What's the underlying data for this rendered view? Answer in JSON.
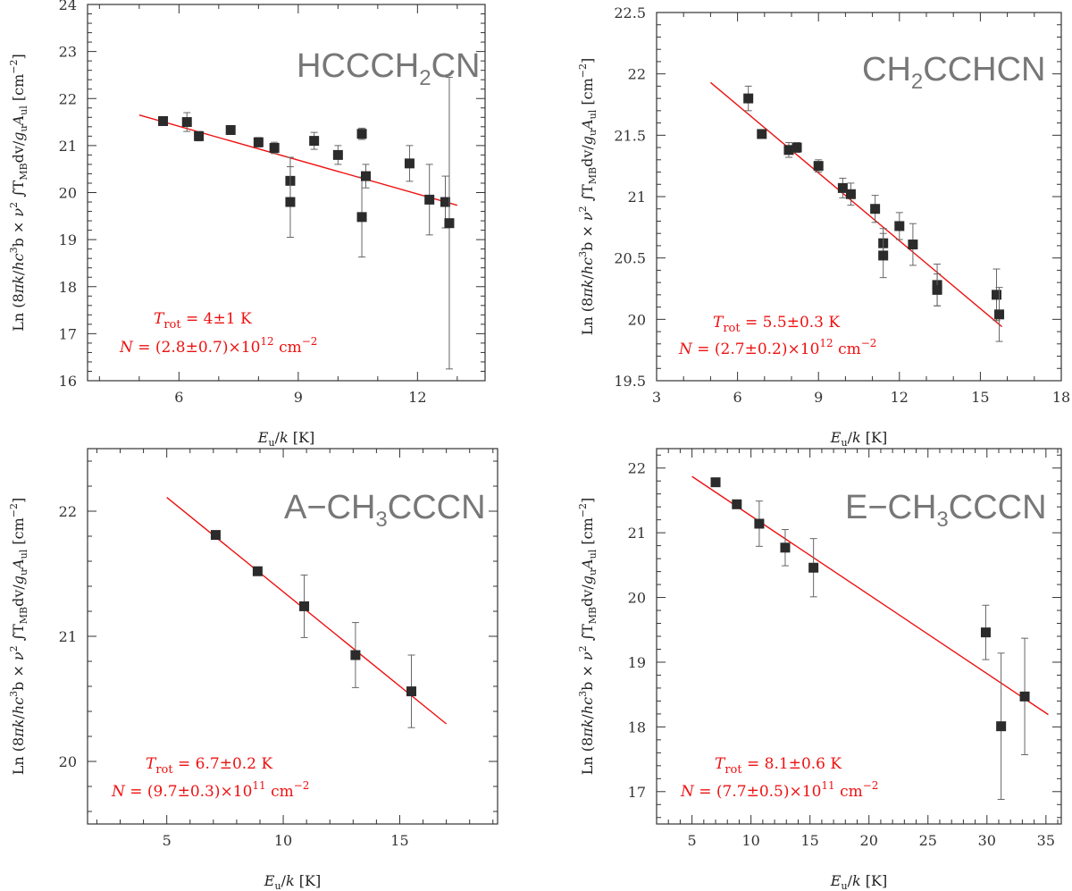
{
  "chart_data": [
    {
      "type": "scatter",
      "molecule": "HCCCH2CN",
      "xlabel": "Eu/k [K]",
      "ylabel": "Ln (8πk/hc³b × ν² ∫TMBdv/guAul [cm⁻²]",
      "xlim": [
        3.7,
        13.7
      ],
      "ylim": [
        16,
        24
      ],
      "xticks": [
        6,
        9,
        12
      ],
      "yticks": [
        16,
        17,
        18,
        19,
        20,
        21,
        22,
        23,
        24
      ],
      "points": [
        {
          "x": 5.6,
          "y": 21.52,
          "err": 0.08
        },
        {
          "x": 6.2,
          "y": 21.5,
          "err": 0.2
        },
        {
          "x": 6.5,
          "y": 21.2,
          "err": 0.1
        },
        {
          "x": 7.3,
          "y": 21.33,
          "err": 0.07
        },
        {
          "x": 8.0,
          "y": 21.07,
          "err": 0.1
        },
        {
          "x": 8.4,
          "y": 20.95,
          "err": 0.12
        },
        {
          "x": 8.8,
          "y": 20.25,
          "err": 0.5
        },
        {
          "x": 8.8,
          "y": 19.8,
          "err": 0.75
        },
        {
          "x": 9.4,
          "y": 21.1,
          "err": 0.18
        },
        {
          "x": 10.0,
          "y": 20.8,
          "err": 0.2
        },
        {
          "x": 10.6,
          "y": 21.25,
          "err": 0.12
        },
        {
          "x": 10.6,
          "y": 19.48,
          "err": 0.85
        },
        {
          "x": 10.7,
          "y": 20.35,
          "err": 0.25
        },
        {
          "x": 11.8,
          "y": 20.62,
          "err": 0.38
        },
        {
          "x": 12.3,
          "y": 19.85,
          "err": 0.75
        },
        {
          "x": 12.7,
          "y": 19.8,
          "err": 0.55
        },
        {
          "x": 12.8,
          "y": 19.35,
          "err": 3.1
        }
      ],
      "fit": {
        "x": [
          5.0,
          13.0
        ],
        "y": [
          21.65,
          19.73
        ]
      },
      "annotation": {
        "trot_symbol": "T",
        "trot_sub": "rot",
        "trot_value": " = 4±1 K",
        "n_symbol": "N",
        "n_value": " = (2.8±0.7)×10",
        "n_exp": "12",
        "n_unit": " cm",
        "n_unit_exp": "−2"
      }
    },
    {
      "type": "scatter",
      "molecule": "CH2CCHCN",
      "xlabel": "Eu/k [K]",
      "ylabel": "Ln (8πk/hc³b × ν² ∫TMBdv/guAul [cm⁻²]",
      "xlim": [
        3,
        18
      ],
      "ylim": [
        19.5,
        22.5
      ],
      "xticks": [
        3,
        6,
        9,
        12,
        15,
        18
      ],
      "yticks": [
        19.5,
        20,
        20.5,
        21,
        21.5,
        22,
        22.5
      ],
      "points": [
        {
          "x": 6.4,
          "y": 21.8,
          "err": 0.1
        },
        {
          "x": 6.9,
          "y": 21.51,
          "err": 0.03
        },
        {
          "x": 7.9,
          "y": 21.38,
          "err": 0.06
        },
        {
          "x": 8.2,
          "y": 21.4,
          "err": 0.04
        },
        {
          "x": 9.0,
          "y": 21.25,
          "err": 0.05
        },
        {
          "x": 9.9,
          "y": 21.07,
          "err": 0.08
        },
        {
          "x": 10.2,
          "y": 21.02,
          "err": 0.09
        },
        {
          "x": 11.1,
          "y": 20.9,
          "err": 0.11
        },
        {
          "x": 11.4,
          "y": 20.62,
          "err": 0.12
        },
        {
          "x": 11.4,
          "y": 20.52,
          "err": 0.18
        },
        {
          "x": 12.0,
          "y": 20.76,
          "err": 0.11
        },
        {
          "x": 12.5,
          "y": 20.61,
          "err": 0.17
        },
        {
          "x": 13.4,
          "y": 20.28,
          "err": 0.17
        },
        {
          "x": 13.4,
          "y": 20.24,
          "err": 0.13
        },
        {
          "x": 15.6,
          "y": 20.2,
          "err": 0.21
        },
        {
          "x": 15.7,
          "y": 20.04,
          "err": 0.22
        }
      ],
      "fit": {
        "x": [
          5.0,
          15.8
        ],
        "y": [
          21.93,
          19.94
        ]
      },
      "annotation": {
        "trot_symbol": "T",
        "trot_sub": "rot",
        "trot_value": " = 5.5±0.3 K",
        "n_symbol": "N",
        "n_value": " = (2.7±0.2)×10",
        "n_exp": "12",
        "n_unit": " cm",
        "n_unit_exp": "−2"
      }
    },
    {
      "type": "scatter",
      "molecule": "A−CH3CCCN",
      "xlabel": "Eu/k [K]",
      "ylabel": "Ln (8πk/hc³b × ν² ∫TMBdv/guAul [cm⁻²]",
      "xlim": [
        1.6,
        19.2
      ],
      "ylim": [
        19.5,
        22.5
      ],
      "xticks": [
        5,
        10,
        15
      ],
      "yticks": [
        20,
        21,
        22
      ],
      "points": [
        {
          "x": 7.1,
          "y": 21.81,
          "err": 0.02
        },
        {
          "x": 8.9,
          "y": 21.52,
          "err": 0.03
        },
        {
          "x": 10.9,
          "y": 21.24,
          "err": 0.25
        },
        {
          "x": 13.1,
          "y": 20.85,
          "err": 0.26
        },
        {
          "x": 15.5,
          "y": 20.56,
          "err": 0.29
        }
      ],
      "fit": {
        "x": [
          5.0,
          17.0
        ],
        "y": [
          22.11,
          20.3
        ]
      },
      "annotation": {
        "trot_symbol": "T",
        "trot_sub": "rot",
        "trot_value": " = 6.7±0.2 K",
        "n_symbol": "N",
        "n_value": " = (9.7±0.3)×10",
        "n_exp": "11",
        "n_unit": " cm",
        "n_unit_exp": "−2"
      }
    },
    {
      "type": "scatter",
      "molecule": "E−CH3CCCN",
      "xlabel": "Eu/k [K]",
      "ylabel": "Ln (8πk/hc³b × ν² ∫TMBdv/guAul [cm⁻²]",
      "xlim": [
        2,
        36.3
      ],
      "ylim": [
        16.5,
        22.3
      ],
      "xticks": [
        5,
        10,
        15,
        20,
        25,
        30,
        35
      ],
      "yticks": [
        17,
        18,
        19,
        20,
        21,
        22
      ],
      "points": [
        {
          "x": 7.0,
          "y": 21.78,
          "err": 0.02
        },
        {
          "x": 8.8,
          "y": 21.44,
          "err": 0.03
        },
        {
          "x": 10.7,
          "y": 21.14,
          "err": 0.35
        },
        {
          "x": 12.9,
          "y": 20.77,
          "err": 0.28
        },
        {
          "x": 15.3,
          "y": 20.46,
          "err": 0.45
        },
        {
          "x": 29.9,
          "y": 19.46,
          "err": 0.42
        },
        {
          "x": 31.2,
          "y": 18.01,
          "err": 1.13
        },
        {
          "x": 33.2,
          "y": 18.47,
          "err": 0.9
        }
      ],
      "fit": {
        "x": [
          5.0,
          35.2
        ],
        "y": [
          21.87,
          18.19
        ]
      },
      "annotation": {
        "trot_symbol": "T",
        "trot_sub": "rot",
        "trot_value": " = 8.1±0.6 K",
        "n_symbol": "N",
        "n_value": " = (7.7±0.5)×10",
        "n_exp": "11",
        "n_unit": " cm",
        "n_unit_exp": "−2"
      }
    }
  ],
  "colors": {
    "fit": "#ee1111",
    "annotation": "#ee1111",
    "marker": "#2b2b2b",
    "errorbar": "#666666",
    "molecule_label": "#777777"
  }
}
